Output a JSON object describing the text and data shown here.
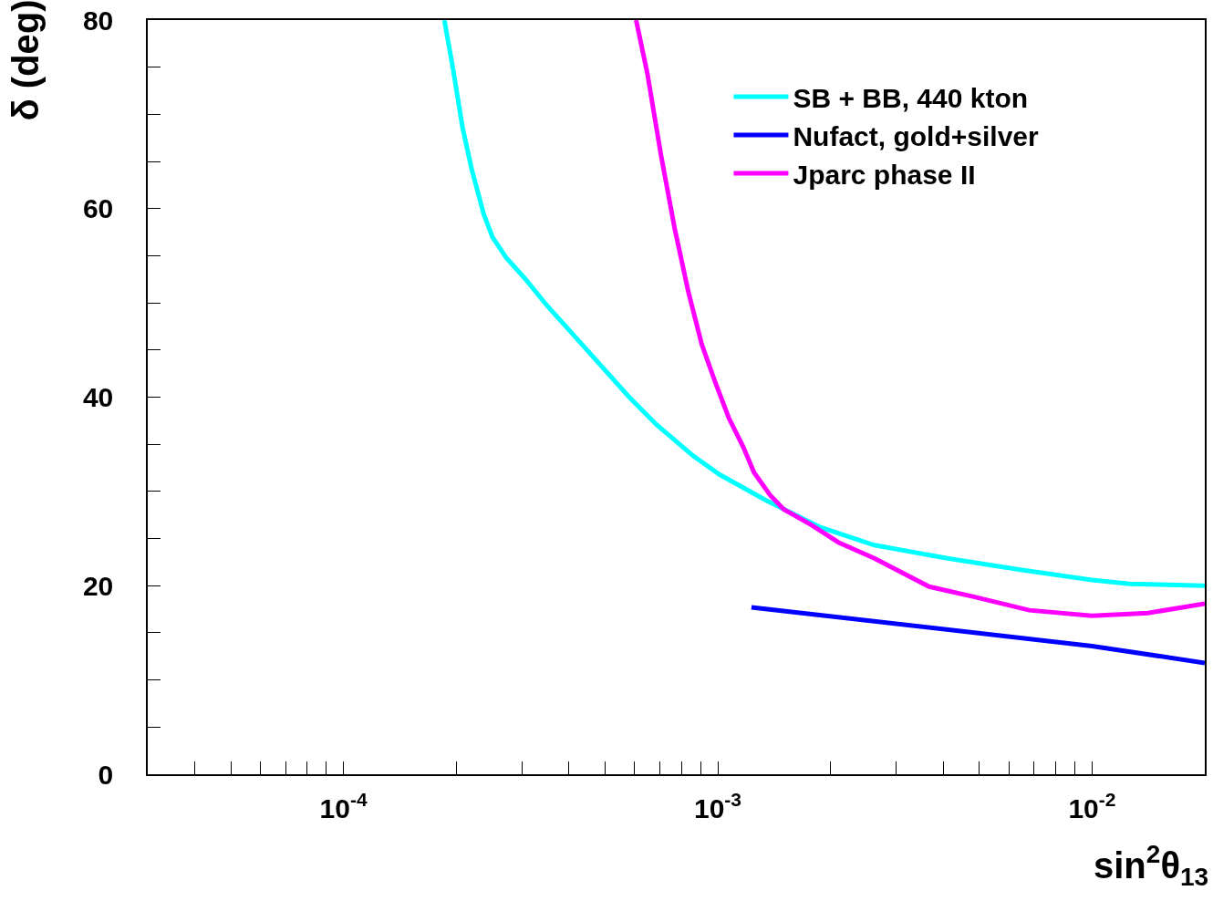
{
  "chart_data": {
    "type": "line",
    "xlabel": "sin$^{2}$θ$_{13}$",
    "ylabel": "δ (deg)",
    "log": "x",
    "grid": false,
    "legend": "top right",
    "marker": "none",
    "line_style": "solid",
    "xlim": [
      3e-05,
      0.02
    ],
    "ylim": [
      0,
      80
    ],
    "xticks": [
      {
        "value": 4e-05,
        "label": null
      },
      {
        "value": 5e-05,
        "label": null
      },
      {
        "value": 6e-05,
        "label": null
      },
      {
        "value": 7e-05,
        "label": null
      },
      {
        "value": 8e-05,
        "label": null
      },
      {
        "value": 9e-05,
        "label": null
      },
      {
        "value": 0.0001,
        "label": "10$^{-4}$"
      },
      {
        "value": 0.0002,
        "label": null
      },
      {
        "value": 0.0003,
        "label": null
      },
      {
        "value": 0.0004,
        "label": null
      },
      {
        "value": 0.0005,
        "label": null
      },
      {
        "value": 0.0006,
        "label": null
      },
      {
        "value": 0.0007,
        "label": null
      },
      {
        "value": 0.0008,
        "label": null
      },
      {
        "value": 0.0009,
        "label": null
      },
      {
        "value": 0.001,
        "label": "10$^{-3}$"
      },
      {
        "value": 0.002,
        "label": null
      },
      {
        "value": 0.003,
        "label": null
      },
      {
        "value": 0.004,
        "label": null
      },
      {
        "value": 0.005,
        "label": null
      },
      {
        "value": 0.006,
        "label": null
      },
      {
        "value": 0.007,
        "label": null
      },
      {
        "value": 0.008,
        "label": null
      },
      {
        "value": 0.009,
        "label": null
      },
      {
        "value": 0.01,
        "label": "10$^{-2}$"
      }
    ],
    "yticks": [
      0,
      {
        "value": 5,
        "label": null
      },
      {
        "value": 10,
        "label": null
      },
      {
        "value": 15,
        "label": null
      },
      20,
      {
        "value": 25,
        "label": null
      },
      {
        "value": 30,
        "label": null
      },
      {
        "value": 35,
        "label": null
      },
      40,
      {
        "value": 45,
        "label": null
      },
      {
        "value": 50,
        "label": null
      },
      {
        "value": 55,
        "label": null
      },
      60,
      {
        "value": 65,
        "label": null
      },
      {
        "value": 70,
        "label": null
      },
      {
        "value": 75,
        "label": null
      },
      80
    ],
    "series": [
      {
        "name": "SB + BB, 440 kton",
        "color": "#00ffff",
        "x": [
          0.000186,
          0.000197,
          0.000208,
          0.00022,
          0.000237,
          0.00025,
          0.000272,
          0.000305,
          0.00035,
          0.000438,
          0.00058,
          0.000685,
          0.000858,
          0.00101,
          0.00134,
          0.00188,
          0.00262,
          0.00411,
          0.00643,
          0.01,
          0.0126,
          0.02
        ],
        "values": [
          80,
          74.4,
          68.6,
          64.2,
          59.4,
          57,
          54.8,
          52.6,
          49.7,
          45.4,
          40,
          37.1,
          33.8,
          31.8,
          29.1,
          26.2,
          24.3,
          22.9,
          21.7,
          20.6,
          20.2,
          20
        ]
      },
      {
        "name": "Nufact, gold+silver",
        "color": "#0000ff",
        "x": [
          0.00123,
          0.01,
          0.02
        ],
        "values": [
          17.7,
          13.6,
          11.8
        ]
      },
      {
        "name": "Jparc phase II",
        "color": "#ff00ff",
        "x": [
          0.000605,
          0.000648,
          0.000705,
          0.000767,
          0.000834,
          0.000906,
          0.000986,
          0.00107,
          0.00117,
          0.00125,
          0.00138,
          0.0015,
          0.00177,
          0.0021,
          0.00262,
          0.00367,
          0.00486,
          0.00679,
          0.01,
          0.0141,
          0.02
        ],
        "values": [
          80,
          74.4,
          65.7,
          57.9,
          51.2,
          45.6,
          41.5,
          37.8,
          34.7,
          32,
          29.6,
          28.1,
          26.5,
          24.6,
          22.9,
          19.9,
          18.8,
          17.4,
          16.8,
          17.1,
          18.1
        ]
      }
    ]
  }
}
